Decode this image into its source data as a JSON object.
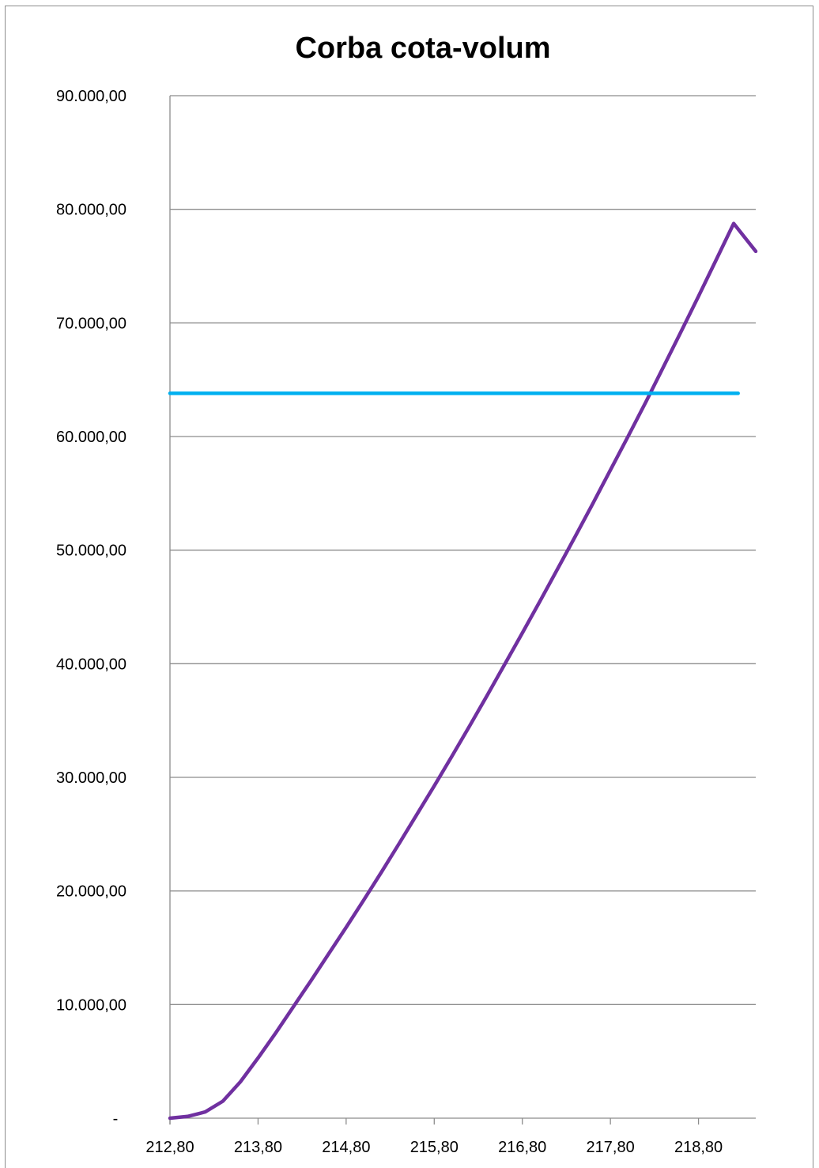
{
  "chart_data": {
    "type": "line",
    "title": "Corba cota-volum",
    "xlabel": "",
    "ylabel": "",
    "xlim": [
      212.8,
      219.45
    ],
    "ylim": [
      0,
      90000
    ],
    "grid": "horizontal",
    "legend": "none",
    "x_ticks": [
      "212,80",
      "213,80",
      "214,80",
      "215,80",
      "216,80",
      "217,80",
      "218,80"
    ],
    "x_tick_values": [
      212.8,
      213.8,
      214.8,
      215.8,
      216.8,
      217.8,
      218.8
    ],
    "y_ticks": [
      "-",
      "10.000,00",
      "20.000,00",
      "30.000,00",
      "40.000,00",
      "50.000,00",
      "60.000,00",
      "70.000,00",
      "80.000,00",
      "90.000,00"
    ],
    "y_tick_values": [
      0,
      10000,
      20000,
      30000,
      40000,
      50000,
      60000,
      70000,
      80000,
      90000
    ],
    "series": [
      {
        "color": "#7030a0",
        "x": [
          212.8,
          213.0,
          213.2,
          213.4,
          213.6,
          213.8,
          214.0,
          214.2,
          214.4,
          214.6,
          214.8,
          215.0,
          215.2,
          215.4,
          215.6,
          215.8,
          216.0,
          216.2,
          216.4,
          216.6,
          216.8,
          217.0,
          217.2,
          217.4,
          217.6,
          217.8,
          218.0,
          218.2,
          218.4,
          218.6,
          218.8,
          219.0,
          219.2,
          219.45
        ],
        "y": [
          0,
          150,
          550,
          1500,
          3200,
          5300,
          7500,
          9800,
          12100,
          14450,
          16800,
          19200,
          21650,
          24150,
          26700,
          29250,
          31850,
          34500,
          37200,
          39950,
          42700,
          45500,
          48350,
          51200,
          54100,
          57050,
          60000,
          63000,
          66100,
          69200,
          72350,
          75550,
          78750,
          76300
        ]
      },
      {
        "color": "#00b0f0",
        "x": [
          212.8,
          219.25
        ],
        "y": [
          63800,
          63800
        ]
      }
    ]
  }
}
